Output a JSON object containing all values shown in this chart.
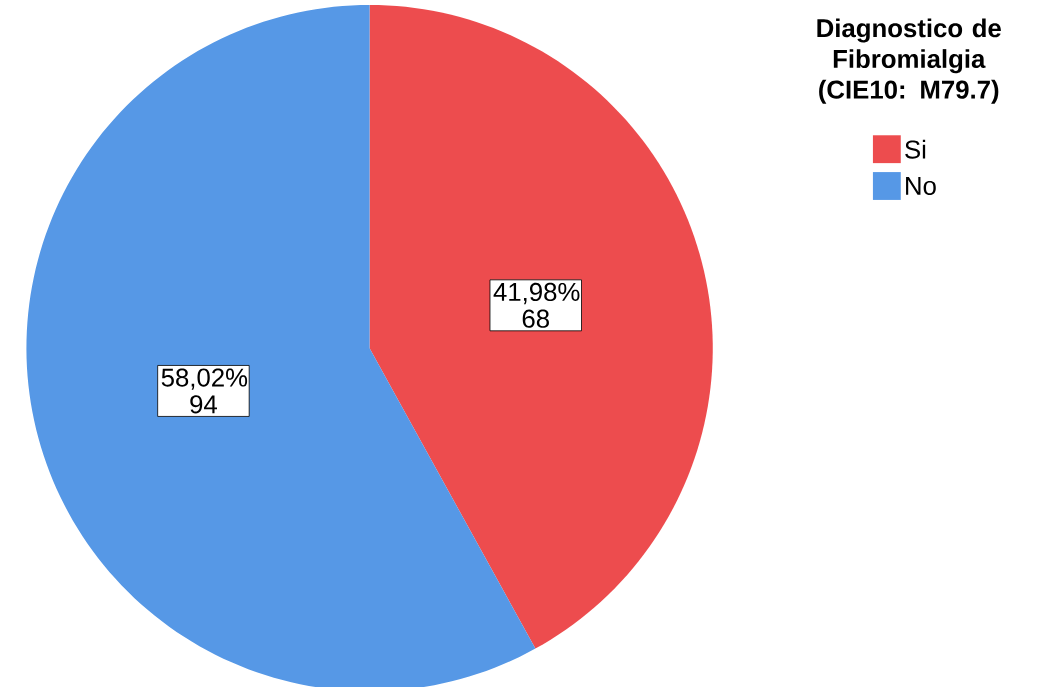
{
  "chart_data": {
    "type": "pie",
    "legend_title": "Diagnostico de Fibromialgia (CIE10: M79.7)",
    "categories": [
      "Si",
      "No"
    ],
    "values": [
      68,
      94
    ],
    "colors": [
      "#ed4c4e",
      "#5698e6"
    ],
    "value_labels": [
      "41,98% 68",
      "58,02% 94"
    ],
    "legend": "top right"
  }
}
